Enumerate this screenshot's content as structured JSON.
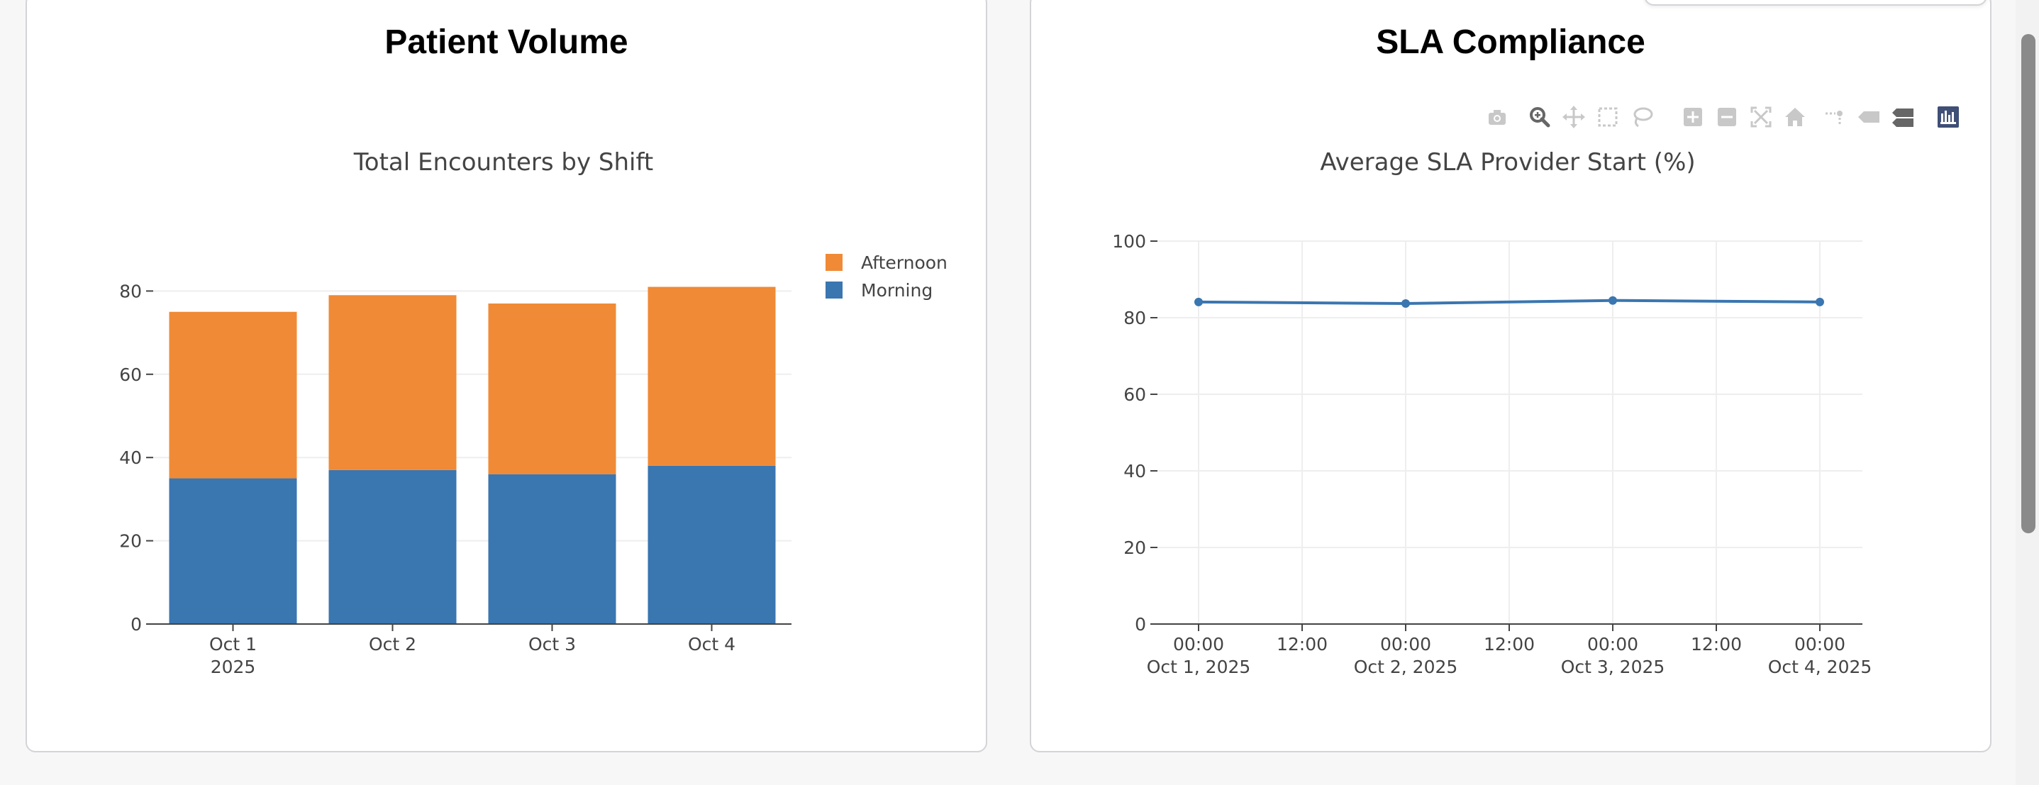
{
  "cards": {
    "left_title": "Patient Volume",
    "right_title": "SLA Compliance"
  },
  "chart_data": [
    {
      "type": "bar",
      "stacked": true,
      "title": "Total Encounters by Shift",
      "categories": [
        "Oct 1",
        "Oct 2",
        "Oct 3",
        "Oct 4"
      ],
      "category_sublabel": "2025",
      "series": [
        {
          "name": "Morning",
          "values": [
            35,
            37,
            36,
            38
          ],
          "color": "#3a76b0"
        },
        {
          "name": "Afternoon",
          "values": [
            40,
            42,
            41,
            43
          ],
          "color": "#f08a36"
        }
      ],
      "ylim": [
        0,
        80
      ],
      "yticks": [
        0,
        20,
        40,
        60,
        80
      ],
      "legend_order": [
        "Afternoon",
        "Morning"
      ],
      "legend_position": "top-right",
      "grid": true,
      "xlabel": "",
      "ylabel": ""
    },
    {
      "type": "line",
      "title": "Average SLA Provider Start (%)",
      "x": [
        "2025-10-01 00:00",
        "2025-10-02 00:00",
        "2025-10-03 00:00",
        "2025-10-04 00:00"
      ],
      "series": [
        {
          "values": [
            84.1,
            83.7,
            84.5,
            84.1
          ],
          "color": "#3a76b0"
        }
      ],
      "ylim": [
        0,
        100
      ],
      "yticks": [
        0,
        20,
        40,
        60,
        80,
        100
      ],
      "xticks": [
        {
          "time": "00:00",
          "date": "Oct 1, 2025"
        },
        {
          "time": "12:00",
          "date": ""
        },
        {
          "time": "00:00",
          "date": "Oct 2, 2025"
        },
        {
          "time": "12:00",
          "date": ""
        },
        {
          "time": "00:00",
          "date": "Oct 3, 2025"
        },
        {
          "time": "12:00",
          "date": ""
        },
        {
          "time": "00:00",
          "date": "Oct 4, 2025"
        }
      ],
      "grid": true,
      "xlabel": "",
      "ylabel": ""
    }
  ],
  "toolbar": {
    "icons": [
      "camera-icon",
      "zoom-icon",
      "pan-icon",
      "box-select-icon",
      "lasso-select-icon",
      "zoom-in-icon",
      "zoom-out-icon",
      "autoscale-icon",
      "reset-axes-icon",
      "spike-lines-icon",
      "hover-closest-icon",
      "hover-compare-icon",
      "plotly-logo-icon"
    ],
    "icon_color": "#c8c8c8",
    "active_color": "#666666",
    "logo_color": "#3f4f75"
  }
}
